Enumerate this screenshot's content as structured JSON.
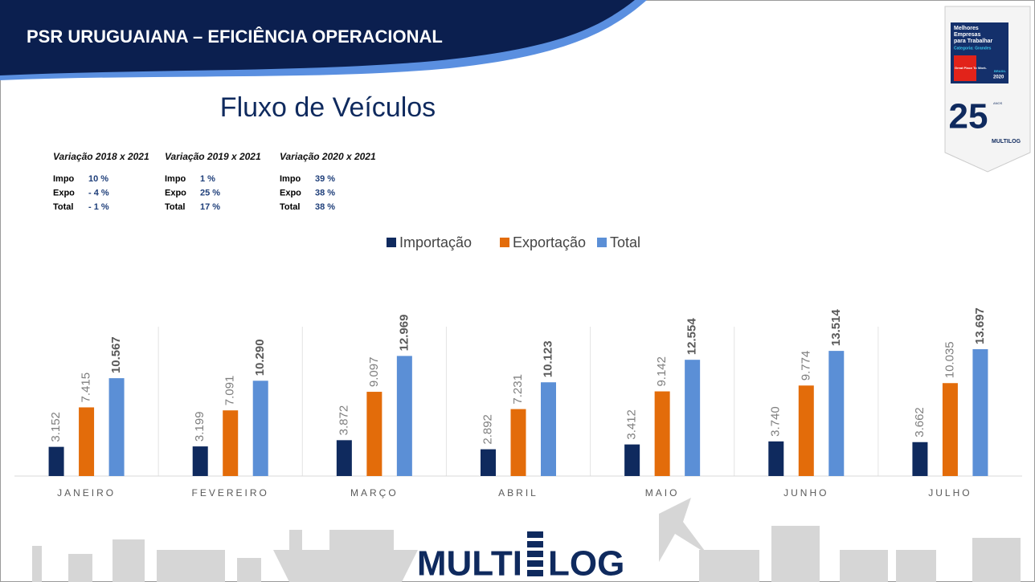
{
  "header": {
    "title": "PSR URUGUAIANA – EFICIÊNCIA OPERACIONAL"
  },
  "subtitle": "Fluxo de Veículos",
  "badge": {
    "line1": "Melhores",
    "line2": "Empresas",
    "line3": "para Trabalhar",
    "category": "Categoria: Grandes",
    "gptw": "Great Place To Work.",
    "country": "BRASIL",
    "year": "2020",
    "anniversary": "25",
    "anniversary_word": "ANOS",
    "brand": "MULTILOG"
  },
  "variations": [
    {
      "title": "Variação 2018 x 2021",
      "rows": [
        {
          "label": "Impo",
          "value": "10 %"
        },
        {
          "label": "Expo",
          "value": "- 4 %"
        },
        {
          "label": "Total",
          "value": "- 1 %"
        }
      ]
    },
    {
      "title": "Variação 2019 x 2021",
      "rows": [
        {
          "label": "Impo",
          "value": "1 %"
        },
        {
          "label": "Expo",
          "value": "25 %"
        },
        {
          "label": "Total",
          "value": "17 %"
        }
      ]
    },
    {
      "title": "Variação 2020 x 2021",
      "rows": [
        {
          "label": "Impo",
          "value": "39 %"
        },
        {
          "label": "Expo",
          "value": "38 %"
        },
        {
          "label": "Total",
          "value": "38 %"
        }
      ]
    }
  ],
  "logo": {
    "left": "MULTI",
    "right": "LOG"
  },
  "chart_data": {
    "type": "bar",
    "categories": [
      "JANEIRO",
      "FEVEREIRO",
      "MARÇO",
      "ABRIL",
      "MAIO",
      "JUNHO",
      "JULHO"
    ],
    "legend": "top",
    "series": [
      {
        "name": "Importação",
        "color": "#0f2a5e",
        "values": [
          3152,
          3199,
          3872,
          2892,
          3412,
          3740,
          3662
        ],
        "value_labels": [
          "3.152",
          "3.199",
          "3.872",
          "2.892",
          "3.412",
          "3.740",
          "3.662"
        ]
      },
      {
        "name": "Exportação",
        "color": "#e36c0a",
        "values": [
          7415,
          7091,
          9097,
          7231,
          9142,
          9774,
          10035
        ],
        "value_labels": [
          "7.415",
          "7.091",
          "9.097",
          "7.231",
          "9.142",
          "9.774",
          "10.035"
        ]
      },
      {
        "name": "Total",
        "color": "#5b8fd6",
        "values": [
          10567,
          10290,
          12969,
          10123,
          12554,
          13514,
          13697
        ],
        "value_labels": [
          "10.567",
          "10.290",
          "12.969",
          "10.123",
          "12.554",
          "13.514",
          "13.697"
        ]
      }
    ]
  }
}
